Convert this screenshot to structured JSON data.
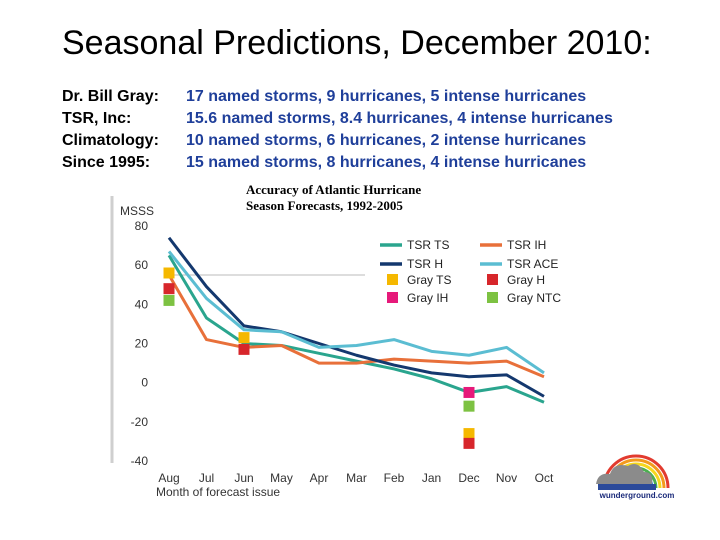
{
  "slide": {
    "title": "Seasonal Predictions, December 2010:",
    "predictions": [
      {
        "label": "Dr. Bill Gray:",
        "text": "17 named storms, 9 hurricanes, 5 intense hurricanes"
      },
      {
        "label": "TSR, Inc:",
        "text": "15.6 named storms, 8.4 hurricanes, 4 intense hurricanes"
      },
      {
        "label": "Climatology:",
        "text": "10 named storms, 6 hurricanes, 2 intense hurricanes"
      },
      {
        "label": "Since 1995:",
        "text": "15 named storms, 8 hurricanes, 4 intense hurricanes"
      }
    ],
    "logo_text": "wunderground.com"
  },
  "chart_data": {
    "type": "line",
    "title_line1": "Accuracy of Atlantic Hurricane",
    "title_line2": "Season Forecasts, 1992-2005",
    "ylabel": "MSSS",
    "xlabel": "Month of forecast issue",
    "categories": [
      "Aug",
      "Jul",
      "Jun",
      "May",
      "Apr",
      "Mar",
      "Feb",
      "Jan",
      "Dec",
      "Nov",
      "Oct"
    ],
    "ylim": [
      -40,
      80
    ],
    "yticks": [
      80,
      60,
      40,
      20,
      0,
      -20,
      -40
    ],
    "legend_position": "top-right",
    "series": [
      {
        "name": "TSR TS",
        "color": "#2aa58e",
        "values": [
          65,
          33,
          20,
          19,
          15,
          11,
          7,
          2,
          -5,
          -2,
          -10
        ]
      },
      {
        "name": "TSR IH",
        "color": "#e8703a",
        "values": [
          55,
          22,
          18,
          19,
          10,
          10,
          12,
          11,
          10,
          11,
          3
        ]
      },
      {
        "name": "TSR H",
        "color": "#14386e",
        "values": [
          74,
          49,
          29,
          26,
          20,
          14,
          9,
          5,
          3,
          4,
          -7
        ]
      },
      {
        "name": "TSR ACE",
        "color": "#5bbdd2",
        "values": [
          67,
          43,
          27,
          26,
          18,
          19,
          22,
          16,
          14,
          18,
          5
        ]
      }
    ],
    "markers": [
      {
        "name": "Gray TS",
        "color": "#f5b800",
        "points": [
          {
            "x": "Aug",
            "y": 56
          },
          {
            "x": "Jun",
            "y": 23
          },
          {
            "x": "Dec",
            "y": -26
          }
        ]
      },
      {
        "name": "Gray H",
        "color": "#d7262b",
        "points": [
          {
            "x": "Aug",
            "y": 48
          },
          {
            "x": "Jun",
            "y": 17
          },
          {
            "x": "Dec",
            "y": -31
          }
        ]
      },
      {
        "name": "Gray IH",
        "color": "#e6197a",
        "points": [
          {
            "x": "Dec",
            "y": -5
          }
        ]
      },
      {
        "name": "Gray NTC",
        "color": "#7dc242",
        "points": [
          {
            "x": "Aug",
            "y": 42
          },
          {
            "x": "Dec",
            "y": -12
          }
        ]
      }
    ]
  }
}
